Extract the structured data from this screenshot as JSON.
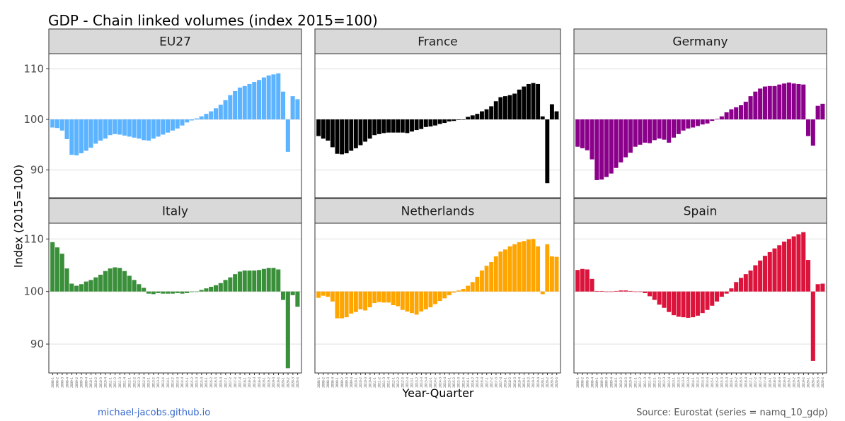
{
  "title": "GDP - Chain linked volumes (index 2015=100)",
  "ylabel": "Index (2015=100)",
  "xlabel": "Year-Quarter",
  "credit_left": "michael-jacobs.github.io",
  "credit_right": "Source: Eurostat (series = namq_10_gdp)",
  "chart_data": {
    "type": "bar",
    "baseline": 100,
    "ylim": [
      84.5,
      113
    ],
    "yticks": [
      90,
      100,
      110
    ],
    "grid": true,
    "facet_layout": "2x3",
    "categories": [
      "2008-1",
      "2008-2",
      "2008-3",
      "2008-4",
      "2009-1",
      "2009-2",
      "2009-3",
      "2009-4",
      "2010-1",
      "2010-2",
      "2010-3",
      "2010-4",
      "2011-1",
      "2011-2",
      "2011-3",
      "2011-4",
      "2012-1",
      "2012-2",
      "2012-3",
      "2012-4",
      "2013-1",
      "2013-2",
      "2013-3",
      "2013-4",
      "2014-1",
      "2014-2",
      "2014-3",
      "2014-4",
      "2015-1",
      "2015-2",
      "2015-3",
      "2015-4",
      "2016-1",
      "2016-2",
      "2016-3",
      "2016-4",
      "2017-1",
      "2017-2",
      "2017-3",
      "2017-4",
      "2018-1",
      "2018-2",
      "2018-3",
      "2018-4",
      "2019-1",
      "2019-2",
      "2019-3",
      "2019-4",
      "2020-1",
      "2020-2",
      "2020-3",
      "2020-4"
    ],
    "series": [
      {
        "name": "EU27",
        "color": "#5cb3ff",
        "values": [
          98.4,
          98.3,
          97.8,
          96.1,
          93.0,
          92.9,
          93.3,
          93.8,
          94.4,
          95.2,
          95.8,
          96.2,
          96.9,
          97.1,
          97.0,
          96.8,
          96.6,
          96.4,
          96.2,
          95.9,
          95.8,
          96.2,
          96.6,
          97.0,
          97.4,
          97.8,
          98.2,
          98.8,
          99.4,
          99.8,
          100.2,
          100.6,
          101.1,
          101.6,
          102.2,
          102.9,
          103.8,
          104.8,
          105.6,
          106.3,
          106.6,
          107.0,
          107.4,
          107.8,
          108.3,
          108.7,
          108.9,
          109.1,
          105.5,
          93.6,
          104.6,
          104.0
        ]
      },
      {
        "name": "France",
        "color": "#000000",
        "values": [
          96.7,
          96.2,
          95.8,
          94.5,
          93.2,
          93.1,
          93.3,
          93.8,
          94.3,
          94.9,
          95.6,
          96.2,
          96.9,
          97.1,
          97.3,
          97.4,
          97.4,
          97.4,
          97.4,
          97.3,
          97.6,
          97.9,
          98.1,
          98.5,
          98.6,
          98.8,
          99.1,
          99.3,
          99.6,
          99.7,
          99.9,
          100.0,
          100.5,
          100.8,
          101.1,
          101.6,
          102.0,
          102.6,
          103.6,
          104.4,
          104.6,
          104.8,
          105.1,
          105.9,
          106.5,
          107.0,
          107.2,
          107.0,
          100.6,
          87.4,
          103.0,
          101.6
        ]
      },
      {
        "name": "Germany",
        "color": "#8b008b",
        "values": [
          94.6,
          94.3,
          93.9,
          92.1,
          88.0,
          88.1,
          88.6,
          89.3,
          90.4,
          91.5,
          92.5,
          93.4,
          94.6,
          95.0,
          95.4,
          95.3,
          95.9,
          96.2,
          96.0,
          95.4,
          96.4,
          97.1,
          97.8,
          98.2,
          98.4,
          98.7,
          99.0,
          99.2,
          99.7,
          100.1,
          100.6,
          101.4,
          102.0,
          102.4,
          102.8,
          103.5,
          104.6,
          105.5,
          106.1,
          106.5,
          106.6,
          106.6,
          106.9,
          107.1,
          107.3,
          107.1,
          107.0,
          106.9,
          96.7,
          94.8,
          102.7,
          103.1
        ]
      },
      {
        "name": "Italy",
        "color": "#3a8f3a",
        "values": [
          109.4,
          108.4,
          107.2,
          104.4,
          101.5,
          101.1,
          101.4,
          101.9,
          102.2,
          102.7,
          103.2,
          103.9,
          104.4,
          104.6,
          104.5,
          103.9,
          103.0,
          102.2,
          101.4,
          100.7,
          99.6,
          99.5,
          99.7,
          99.6,
          99.6,
          99.6,
          99.7,
          99.6,
          99.7,
          99.9,
          100.0,
          100.3,
          100.6,
          100.9,
          101.2,
          101.6,
          102.2,
          102.7,
          103.3,
          103.8,
          104.0,
          104.0,
          104.0,
          104.1,
          104.3,
          104.5,
          104.5,
          104.2,
          98.4,
          85.4,
          99.3,
          97.1
        ]
      },
      {
        "name": "Netherlands",
        "color": "#ffa500",
        "values": [
          98.8,
          99.2,
          99.0,
          98.1,
          94.9,
          94.9,
          95.1,
          95.8,
          96.1,
          96.6,
          96.4,
          97.0,
          97.8,
          98.0,
          97.9,
          97.9,
          97.4,
          97.2,
          96.5,
          96.2,
          95.9,
          95.6,
          96.2,
          96.6,
          97.0,
          97.6,
          98.2,
          98.7,
          99.3,
          99.8,
          100.2,
          100.5,
          101.1,
          101.8,
          102.8,
          104.0,
          104.9,
          105.6,
          106.7,
          107.6,
          108.0,
          108.6,
          109.0,
          109.4,
          109.6,
          109.9,
          110.0,
          108.6,
          99.5,
          109.0,
          106.7,
          106.6
        ]
      },
      {
        "name": "Spain",
        "color": "#dc143c",
        "values": [
          104.1,
          104.3,
          104.2,
          102.4,
          100.1,
          100.1,
          100.0,
          100.0,
          100.1,
          100.2,
          100.2,
          100.1,
          100.0,
          100.0,
          99.7,
          99.1,
          98.4,
          97.5,
          96.9,
          96.1,
          95.5,
          95.2,
          95.1,
          95.0,
          95.1,
          95.4,
          95.9,
          96.5,
          97.3,
          98.1,
          99.0,
          99.6,
          100.6,
          101.8,
          102.6,
          103.3,
          104.0,
          105.0,
          105.9,
          106.8,
          107.5,
          108.2,
          108.8,
          109.5,
          110.0,
          110.5,
          110.9,
          111.3,
          106.0,
          86.8,
          101.4,
          101.5
        ]
      }
    ]
  }
}
